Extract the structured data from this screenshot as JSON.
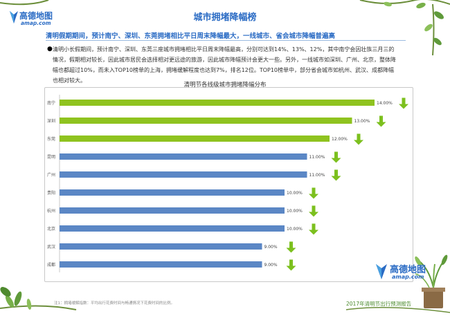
{
  "header": {
    "title": "城市拥堵降幅榜",
    "brand_zh": "高德地图",
    "brand_en": "amap.com"
  },
  "summary": {
    "headline": "清明假期期间，预计南宁、深圳、东莞拥堵相比平日周末降幅最大，一线城市、省会城市降幅普遍高",
    "paragraph": "清明小长假期间，预计南宁、深圳、东莞三座城市拥堵相比平日周末降幅最高，分别可达到14%、13%、12%，其中南宁会因壮族三月三的情况，假期相对较长，因此城市居民会选择相对更远途的旅游，因此城市降幅预计会更大一些。另外，一线城市如深圳、广州、北京，整体降幅也都超过10%，而未入TOP10榜单的上海，拥堵缓解程度也达到7%，排名12位。TOP10榜单中，部分省会城市如杭州、武汉、成都降幅也相对较大。"
  },
  "chart_data": {
    "type": "bar",
    "orientation": "horizontal",
    "title": "清明节各线级城市拥堵降幅分布",
    "categories": [
      "南宁",
      "深圳",
      "东莞",
      "昆明",
      "广州",
      "贵阳",
      "杭州",
      "北京",
      "武汉",
      "成都"
    ],
    "values": [
      14.0,
      13.0,
      12.0,
      11.0,
      11.0,
      10.0,
      10.0,
      10.0,
      9.0,
      9.0
    ],
    "value_labels": [
      "14.00%",
      "13.00%",
      "12.00%",
      "11.00%",
      "11.00%",
      "10.00%",
      "10.00%",
      "10.00%",
      "9.00%",
      "9.00%"
    ],
    "bar_colors": [
      "#8fc31f",
      "#8fc31f",
      "#8fc31f",
      "#5b87c5",
      "#5b87c5",
      "#5b87c5",
      "#5b87c5",
      "#5b87c5",
      "#5b87c5",
      "#5b87c5"
    ],
    "arrow_color": "#7cc01e",
    "xlim": [
      0,
      15
    ],
    "xlabel": "",
    "ylabel": "",
    "grid": false,
    "legend": "none"
  },
  "footer": {
    "note": "注1：拥堵缓解指数：平均出行花费时间与畅通情况下花费时间的比例。",
    "report_title": "2017年清明节出行预测报告",
    "brand2_zh": "高德地图",
    "brand2_en": "amap.com"
  },
  "colors": {
    "accent_blue": "#2a6bc4",
    "green": "#8fc31f",
    "vine": "#4a8a2c"
  }
}
